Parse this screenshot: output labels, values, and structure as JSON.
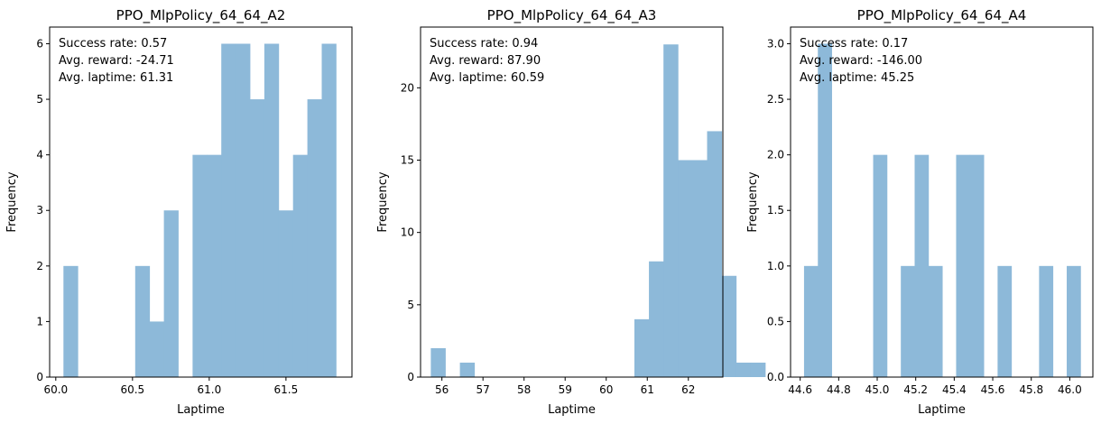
{
  "chart_data": [
    {
      "type": "bar",
      "title": "PPO_MlpPolicy_64_64_A2",
      "xlabel": "Laptime",
      "ylabel": "Frequency",
      "xlim": [
        59.96,
        61.93
      ],
      "ylim": [
        0,
        6.3
      ],
      "xticks": [
        60.0,
        60.5,
        61.0,
        61.5
      ],
      "xtick_labels": [
        "60.0",
        "60.5",
        "61.0",
        "61.5"
      ],
      "yticks": [
        0,
        1,
        2,
        3,
        4,
        5,
        6
      ],
      "ytick_labels": [
        "0",
        "1",
        "2",
        "3",
        "4",
        "5",
        "6"
      ],
      "bin_start": 60.05,
      "bin_width": 0.0935,
      "values": [
        2,
        0,
        0,
        0,
        0,
        2,
        1,
        3,
        0,
        4,
        4,
        6,
        6,
        5,
        6,
        3,
        4,
        5,
        6
      ],
      "bar_color": "#8db9d9",
      "annotations": [
        "Success rate: 0.57",
        "Avg. reward: -24.71",
        "Avg. laptime: 61.31"
      ]
    },
    {
      "type": "bar",
      "title": "PPO_MlpPolicy_64_64_A3",
      "xlabel": "Laptime",
      "ylabel": "Frequency",
      "xlim": [
        55.48,
        62.84
      ],
      "ylim": [
        0,
        24.2
      ],
      "xticks": [
        56,
        57,
        58,
        59,
        60,
        61,
        62
      ],
      "xtick_labels": [
        "56",
        "57",
        "58",
        "59",
        "60",
        "61",
        "62"
      ],
      "yticks": [
        0,
        5,
        10,
        15,
        20
      ],
      "ytick_labels": [
        "0",
        "5",
        "10",
        "15",
        "20"
      ],
      "bin_start": 55.73,
      "bin_width": 0.354,
      "values": [
        2,
        0,
        1,
        0,
        0,
        0,
        0,
        0,
        0,
        0,
        0,
        0,
        0,
        0,
        4,
        8,
        23,
        15,
        15,
        17,
        7,
        1,
        1
      ],
      "bar_color": "#8db9d9",
      "annotations": [
        "Success rate: 0.94",
        "Avg. reward: 87.90",
        "Avg. laptime: 60.59"
      ]
    },
    {
      "type": "bar",
      "title": "PPO_MlpPolicy_64_64_A4",
      "xlabel": "Laptime",
      "ylabel": "Frequency",
      "xlim": [
        44.55,
        46.12
      ],
      "ylim": [
        0,
        3.15
      ],
      "xticks": [
        44.6,
        44.8,
        45.0,
        45.2,
        45.4,
        45.6,
        45.8,
        46.0
      ],
      "xtick_labels": [
        "44.6",
        "44.8",
        "45.0",
        "45.2",
        "45.4",
        "45.6",
        "45.8",
        "46.0"
      ],
      "yticks": [
        0,
        0.5,
        1.0,
        1.5,
        2.0,
        2.5,
        3.0
      ],
      "ytick_labels": [
        "0.0",
        "0.5",
        "1.0",
        "1.5",
        "2.0",
        "2.5",
        "3.0"
      ],
      "bin_start": 44.62,
      "bin_width": 0.0718,
      "values": [
        1,
        3,
        0,
        0,
        0,
        2,
        0,
        1,
        2,
        1,
        0,
        2,
        2,
        0,
        1,
        0,
        0,
        1,
        0,
        1
      ],
      "bar_color": "#8db9d9",
      "annotations": [
        "Success rate: 0.17",
        "Avg. reward: -146.00",
        "Avg. laptime: 45.25"
      ]
    }
  ]
}
